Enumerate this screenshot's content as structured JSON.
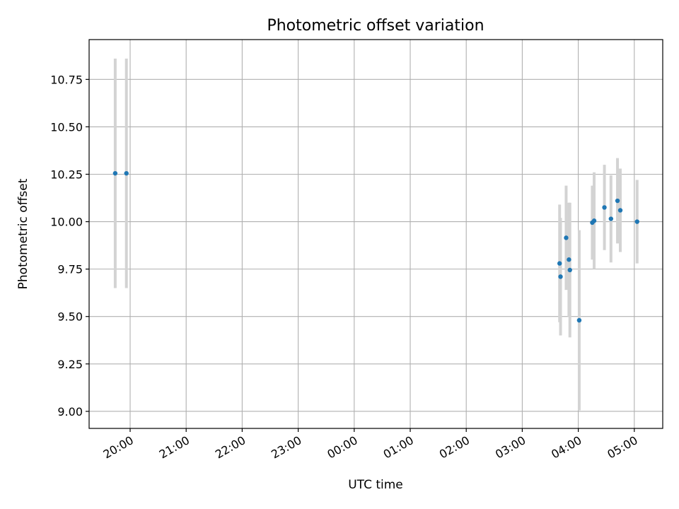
{
  "chart_data": {
    "type": "scatter",
    "title": "Photometric offset variation",
    "xlabel": "UTC time",
    "ylabel": "Photometric offset",
    "x_axis_type": "time",
    "x_tick_values": [
      "20:00",
      "21:00",
      "22:00",
      "23:00",
      "00:00",
      "01:00",
      "02:00",
      "03:00",
      "04:00",
      "05:00"
    ],
    "y_ticks": [
      "9.00",
      "9.25",
      "9.50",
      "9.75",
      "10.00",
      "10.25",
      "10.50",
      "10.75"
    ],
    "ylim": [
      8.91,
      10.96
    ],
    "grid": true,
    "marker_color": "#1f77b4",
    "errorbar_color": "#d3d3d3",
    "points": [
      {
        "time": "19:44",
        "y": 10.255,
        "yerr": 0.605
      },
      {
        "time": "19:56",
        "y": 10.255,
        "yerr": 0.605
      },
      {
        "time": "03:40",
        "y": 9.78,
        "yerr": 0.31
      },
      {
        "time": "03:41",
        "y": 9.71,
        "yerr": 0.31
      },
      {
        "time": "03:47",
        "y": 9.915,
        "yerr": 0.275
      },
      {
        "time": "03:50",
        "y": 9.8,
        "yerr": 0.3
      },
      {
        "time": "03:51",
        "y": 9.745,
        "yerr": 0.355
      },
      {
        "time": "04:01",
        "y": 9.48,
        "yerr": 0.475
      },
      {
        "time": "04:15",
        "y": 9.995,
        "yerr": 0.195
      },
      {
        "time": "04:17",
        "y": 10.005,
        "yerr": 0.255
      },
      {
        "time": "04:28",
        "y": 10.075,
        "yerr": 0.225
      },
      {
        "time": "04:35",
        "y": 10.015,
        "yerr": 0.23
      },
      {
        "time": "04:42",
        "y": 10.11,
        "yerr": 0.225
      },
      {
        "time": "04:45",
        "y": 10.06,
        "yerr": 0.22
      },
      {
        "time": "05:03",
        "y": 10.0,
        "yerr": 0.22
      }
    ]
  }
}
